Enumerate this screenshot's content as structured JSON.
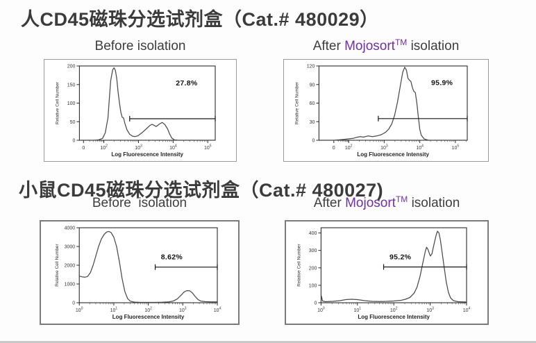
{
  "page": {
    "colors": {
      "brand_purple": "#7030a0",
      "title_text": "#3b3b3b",
      "curve": "#4a4a4a",
      "plot_frame": "#2a2a2a",
      "panel_border_top_row": "#999999",
      "panel_border_bottom_row": "#7a7a7a",
      "bottom_rule": "#c9c9c9"
    }
  },
  "sections": [
    {
      "title": "人CD45磁珠分选试剂盒（Cat.# 480029）",
      "headers": {
        "left": [
          {
            "text": "Before isolation"
          }
        ],
        "right": [
          {
            "text": "After "
          },
          {
            "text": "Mojosort",
            "purple": true
          },
          {
            "text": "TM",
            "purple": true,
            "super": true
          },
          {
            "text": " isolation"
          }
        ]
      }
    },
    {
      "title": "小鼠CD45磁珠分选试剂盒（Cat.# 480027)",
      "headers": {
        "left": [
          {
            "text": "Before  isolation"
          }
        ],
        "right": [
          {
            "text": "After "
          },
          {
            "text": "Mojosort",
            "purple": true
          },
          {
            "text": "TM",
            "purple": true,
            "super": true
          },
          {
            "text": " isolation"
          }
        ]
      }
    }
  ],
  "chart_data": [
    {
      "type": "line",
      "id": "human-cd45-before",
      "panel_title": "Before isolation",
      "xlabel": "Log Fluorescence Intensity",
      "ylabel": "Relative Cell Number",
      "x_scale": "log",
      "grid": false,
      "ylim": [
        0,
        200
      ],
      "y_ticks": [
        0,
        50,
        100,
        150,
        200
      ],
      "x_ticks": [
        {
          "label": "0",
          "pos": 0.03
        },
        {
          "base": "10",
          "exp": "2",
          "pos": 0.18
        },
        {
          "base": "10",
          "exp": "3",
          "pos": 0.435
        },
        {
          "base": "10",
          "exp": "4",
          "pos": 0.69
        },
        {
          "base": "10",
          "exp": "5",
          "pos": 0.945
        }
      ],
      "gate": {
        "y": 58,
        "x1": 0.37,
        "x2": 1,
        "label": "27.8%",
        "label_x": 0.79,
        "label_y": 148
      },
      "curve": [
        [
          0,
          0
        ],
        [
          0.1,
          0
        ],
        [
          0.14,
          1
        ],
        [
          0.17,
          5
        ],
        [
          0.19,
          20
        ],
        [
          0.21,
          60
        ],
        [
          0.22,
          110
        ],
        [
          0.23,
          160
        ],
        [
          0.245,
          190
        ],
        [
          0.255,
          195
        ],
        [
          0.265,
          188
        ],
        [
          0.275,
          165
        ],
        [
          0.285,
          130
        ],
        [
          0.295,
          100
        ],
        [
          0.305,
          75
        ],
        [
          0.315,
          62
        ],
        [
          0.325,
          60
        ],
        [
          0.335,
          45
        ],
        [
          0.35,
          28
        ],
        [
          0.37,
          16
        ],
        [
          0.39,
          11
        ],
        [
          0.41,
          10
        ],
        [
          0.43,
          12
        ],
        [
          0.46,
          20
        ],
        [
          0.49,
          30
        ],
        [
          0.52,
          40
        ],
        [
          0.535,
          43
        ],
        [
          0.55,
          40
        ],
        [
          0.565,
          37
        ],
        [
          0.59,
          44
        ],
        [
          0.61,
          48
        ],
        [
          0.63,
          42
        ],
        [
          0.65,
          30
        ],
        [
          0.665,
          16
        ],
        [
          0.68,
          6
        ],
        [
          0.7,
          1
        ],
        [
          0.73,
          0
        ],
        [
          1,
          0
        ]
      ]
    },
    {
      "type": "line",
      "id": "human-cd45-after",
      "panel_title": "After Mojosort TM isolation",
      "xlabel": "Log Fluorescence Intensity",
      "ylabel": "Relative Cell Number",
      "x_scale": "log",
      "grid": false,
      "ylim": [
        0,
        120
      ],
      "y_ticks": [
        0,
        30,
        60,
        90,
        120
      ],
      "x_ticks": [
        {
          "label": "0",
          "pos": 0.1
        },
        {
          "base": "10",
          "exp": "2",
          "pos": 0.2
        },
        {
          "base": "10",
          "exp": "3",
          "pos": 0.44
        },
        {
          "base": "10",
          "exp": "4",
          "pos": 0.68
        },
        {
          "base": "10",
          "exp": "5",
          "pos": 0.92
        }
      ],
      "gate": {
        "y": 35,
        "x1": 0.4,
        "x2": 1,
        "label": "95.9%",
        "label_x": 0.83,
        "label_y": 89
      },
      "curve": [
        [
          0,
          0
        ],
        [
          0.1,
          0
        ],
        [
          0.15,
          1
        ],
        [
          0.19,
          2
        ],
        [
          0.23,
          3
        ],
        [
          0.26,
          5
        ],
        [
          0.28,
          6
        ],
        [
          0.3,
          5
        ],
        [
          0.33,
          7
        ],
        [
          0.36,
          6
        ],
        [
          0.39,
          7
        ],
        [
          0.42,
          9
        ],
        [
          0.45,
          13
        ],
        [
          0.47,
          18
        ],
        [
          0.49,
          26
        ],
        [
          0.51,
          40
        ],
        [
          0.53,
          62
        ],
        [
          0.55,
          90
        ],
        [
          0.565,
          110
        ],
        [
          0.578,
          118
        ],
        [
          0.59,
          113
        ],
        [
          0.6,
          100
        ],
        [
          0.61,
          97
        ],
        [
          0.62,
          95
        ],
        [
          0.63,
          85
        ],
        [
          0.64,
          79
        ],
        [
          0.65,
          77
        ],
        [
          0.66,
          60
        ],
        [
          0.67,
          38
        ],
        [
          0.68,
          18
        ],
        [
          0.69,
          8
        ],
        [
          0.71,
          2
        ],
        [
          0.74,
          0
        ],
        [
          1,
          0
        ]
      ]
    },
    {
      "type": "line",
      "id": "mouse-cd45-before",
      "panel_title": "Before isolation",
      "xlabel": "Log Fluorescence Intensity",
      "ylabel": "Relative Cell Number",
      "x_scale": "log",
      "grid": false,
      "ylim": [
        0,
        4000
      ],
      "y_ticks": [
        0,
        1000,
        2000,
        3000,
        4000
      ],
      "x_ticks": [
        {
          "base": "10",
          "exp": "0",
          "pos": 0
        },
        {
          "base": "10",
          "exp": "1",
          "pos": 0.25
        },
        {
          "base": "10",
          "exp": "2",
          "pos": 0.5
        },
        {
          "base": "10",
          "exp": "3",
          "pos": 0.75
        },
        {
          "base": "10",
          "exp": "4",
          "pos": 1
        }
      ],
      "gate": {
        "y": 1900,
        "x1": 0.55,
        "x2": 1,
        "label": "8.62%",
        "label_x": 0.67,
        "label_y": 2320
      },
      "curve": [
        [
          0,
          1420
        ],
        [
          0.02,
          1380
        ],
        [
          0.04,
          1360
        ],
        [
          0.06,
          1400
        ],
        [
          0.08,
          1600
        ],
        [
          0.1,
          2000
        ],
        [
          0.12,
          2500
        ],
        [
          0.14,
          3000
        ],
        [
          0.16,
          3400
        ],
        [
          0.18,
          3650
        ],
        [
          0.2,
          3780
        ],
        [
          0.215,
          3800
        ],
        [
          0.23,
          3750
        ],
        [
          0.25,
          3500
        ],
        [
          0.27,
          3000
        ],
        [
          0.29,
          2200
        ],
        [
          0.31,
          1300
        ],
        [
          0.33,
          600
        ],
        [
          0.35,
          220
        ],
        [
          0.37,
          80
        ],
        [
          0.4,
          35
        ],
        [
          0.45,
          20
        ],
        [
          0.5,
          18
        ],
        [
          0.55,
          20
        ],
        [
          0.6,
          25
        ],
        [
          0.65,
          45
        ],
        [
          0.68,
          90
        ],
        [
          0.71,
          200
        ],
        [
          0.74,
          420
        ],
        [
          0.76,
          580
        ],
        [
          0.78,
          645
        ],
        [
          0.8,
          640
        ],
        [
          0.82,
          520
        ],
        [
          0.84,
          330
        ],
        [
          0.86,
          170
        ],
        [
          0.88,
          90
        ],
        [
          0.91,
          60
        ],
        [
          0.95,
          50
        ],
        [
          1,
          45
        ]
      ]
    },
    {
      "type": "line",
      "id": "mouse-cd45-after",
      "panel_title": "After Mojosort TM isolation",
      "xlabel": "Log Fluorescence Intensity",
      "ylabel": "Relative Cell Number",
      "x_scale": "log",
      "grid": false,
      "ylim": [
        0,
        430
      ],
      "y_ticks": [
        0,
        100,
        200,
        300,
        400
      ],
      "x_ticks": [
        {
          "base": "10",
          "exp": "0",
          "pos": 0
        },
        {
          "base": "10",
          "exp": "1",
          "pos": 0.25
        },
        {
          "base": "10",
          "exp": "2",
          "pos": 0.5
        },
        {
          "base": "10",
          "exp": "3",
          "pos": 0.75
        },
        {
          "base": "10",
          "exp": "4",
          "pos": 1
        }
      ],
      "gate": {
        "y": 205,
        "x1": 0.43,
        "x2": 1,
        "label": "95.2%",
        "label_x": 0.545,
        "label_y": 248
      },
      "curve": [
        [
          0,
          2
        ],
        [
          0.003,
          38
        ],
        [
          0.01,
          10
        ],
        [
          0.03,
          6
        ],
        [
          0.08,
          8
        ],
        [
          0.13,
          12
        ],
        [
          0.17,
          18
        ],
        [
          0.21,
          20
        ],
        [
          0.25,
          18
        ],
        [
          0.3,
          12
        ],
        [
          0.35,
          8
        ],
        [
          0.4,
          7
        ],
        [
          0.45,
          8
        ],
        [
          0.5,
          10
        ],
        [
          0.55,
          14
        ],
        [
          0.58,
          20
        ],
        [
          0.61,
          30
        ],
        [
          0.64,
          55
        ],
        [
          0.66,
          90
        ],
        [
          0.68,
          150
        ],
        [
          0.7,
          230
        ],
        [
          0.715,
          290
        ],
        [
          0.725,
          318
        ],
        [
          0.735,
          305
        ],
        [
          0.745,
          280
        ],
        [
          0.752,
          268
        ],
        [
          0.762,
          280
        ],
        [
          0.775,
          330
        ],
        [
          0.79,
          385
        ],
        [
          0.8,
          410
        ],
        [
          0.81,
          400
        ],
        [
          0.82,
          360
        ],
        [
          0.83,
          300
        ],
        [
          0.845,
          210
        ],
        [
          0.86,
          120
        ],
        [
          0.875,
          60
        ],
        [
          0.89,
          28
        ],
        [
          0.91,
          12
        ],
        [
          0.94,
          6
        ],
        [
          1,
          4
        ]
      ]
    }
  ]
}
